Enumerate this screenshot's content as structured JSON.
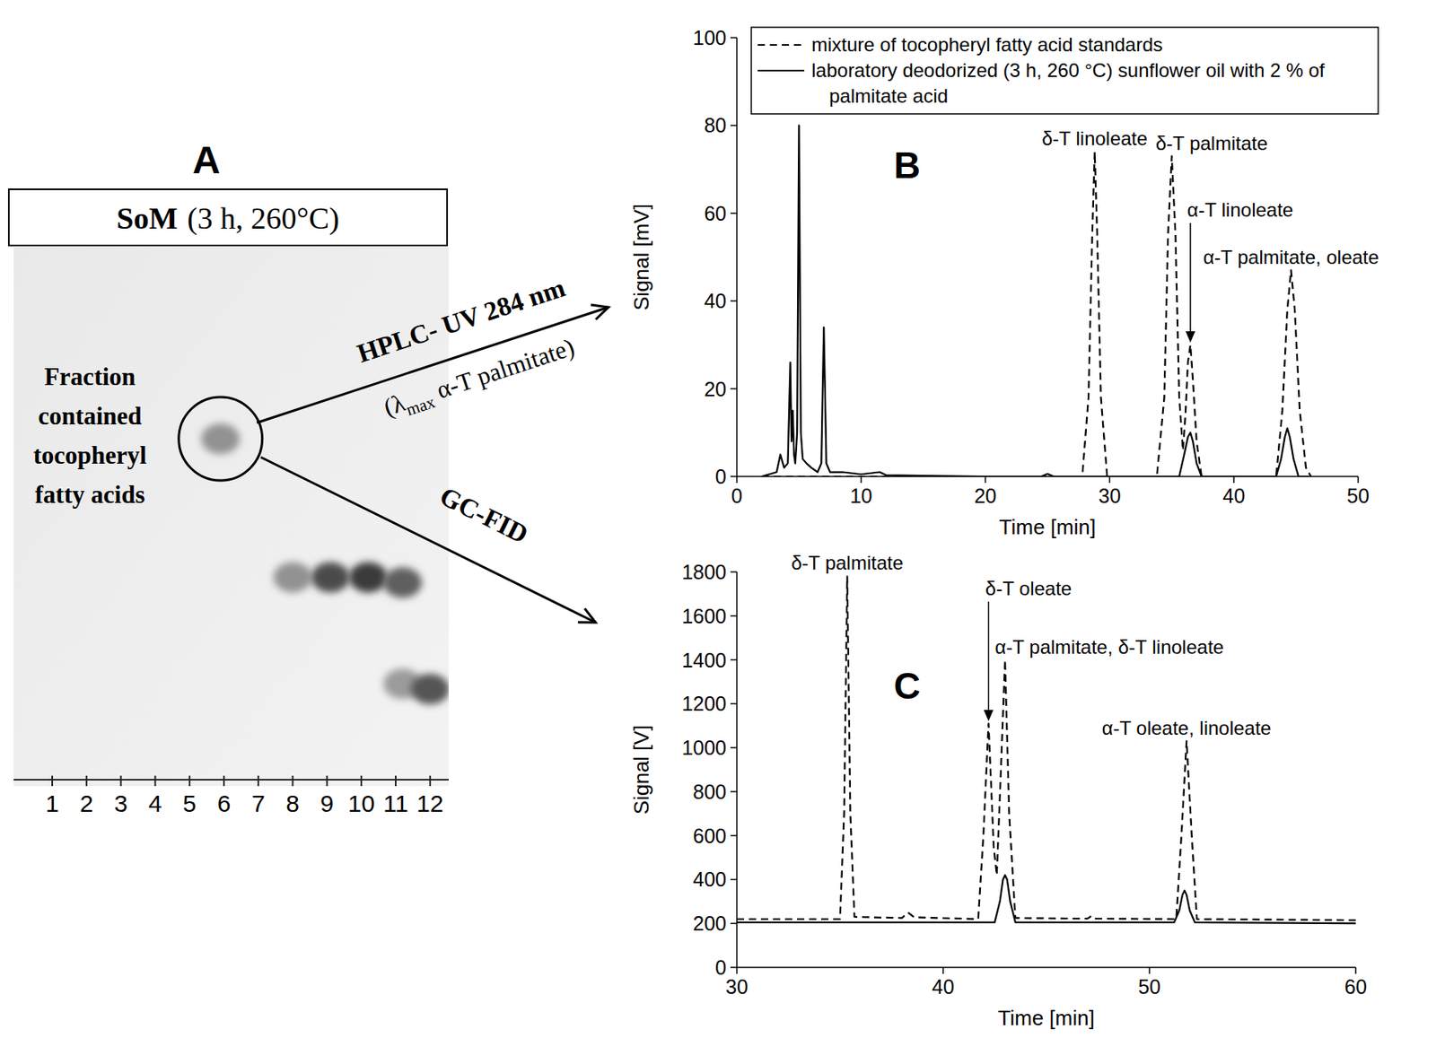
{
  "tlc_plate": {
    "panel_label": "A",
    "sample": "SoM",
    "conditions": "(3 h, 260°C)",
    "lanes": [
      1,
      2,
      3,
      4,
      5,
      6,
      7,
      8,
      9,
      10,
      11,
      12
    ],
    "fraction_label": "Fraction contained tocopheryl fatty acids",
    "spots": [
      {
        "lane": 5.9,
        "rf": 0.64,
        "intensity": 0.45
      },
      {
        "lane": 8,
        "rf": 0.38,
        "intensity": 0.45
      },
      {
        "lane": 9.1,
        "rf": 0.38,
        "intensity": 0.85
      },
      {
        "lane": 10.2,
        "rf": 0.38,
        "intensity": 0.95
      },
      {
        "lane": 11.2,
        "rf": 0.37,
        "intensity": 0.75
      },
      {
        "lane": 11.2,
        "rf": 0.18,
        "intensity": 0.4
      },
      {
        "lane": 12,
        "rf": 0.17,
        "intensity": 0.8
      }
    ],
    "routes": [
      {
        "method": "HPLC- UV 284 nm",
        "note": {
          "prefix": "(λ",
          "subscript": "max",
          "suffix": " α-T palmitate)"
        }
      },
      {
        "method": "GC-FID"
      }
    ]
  },
  "chart_data": [
    {
      "type": "line",
      "panel_label": "B",
      "xlabel": "Time [min]",
      "ylabel": "Signal [mV]",
      "xlim": [
        0,
        50
      ],
      "xticks": [
        0,
        10,
        20,
        30,
        40,
        50
      ],
      "ylim": [
        0,
        100
      ],
      "yticks": [
        0,
        20,
        40,
        60,
        80,
        100
      ],
      "legend": "top",
      "series": [
        {
          "name": "mixture of tocopheryl fatty acid standards",
          "color": "#000000",
          "line_style": "dashed",
          "x": [
            2,
            10,
            20,
            27.8,
            28.3,
            28.6,
            28.8,
            29.0,
            29.3,
            29.8,
            33.8,
            34.4,
            34.7,
            35.0,
            35.3,
            35.6,
            35.9,
            36.1,
            36.3,
            36.5,
            36.7,
            37.0,
            37.4,
            43.4,
            43.9,
            44.3,
            44.6,
            44.9,
            45.3,
            45.8,
            46.2
          ],
          "values": [
            0,
            0,
            0,
            0,
            18,
            55,
            74,
            55,
            18,
            0,
            0,
            18,
            55,
            73,
            55,
            18,
            6,
            14,
            26,
            30,
            22,
            8,
            0,
            0,
            15,
            38,
            47,
            38,
            15,
            2,
            0
          ]
        },
        {
          "name": "laboratory deodorized (3 h, 260 °C) sunflower oil with 2 % of palmitate acid",
          "color": "#000000",
          "line_style": "solid",
          "x": [
            2,
            3.2,
            3.5,
            3.8,
            4.1,
            4.3,
            4.4,
            4.5,
            4.6,
            4.7,
            4.85,
            5.0,
            5.15,
            5.3,
            5.6,
            6.0,
            6.5,
            6.8,
            7.0,
            7.2,
            7.5,
            8.5,
            10,
            11.5,
            12,
            20,
            24.5,
            25,
            25.5,
            30,
            35.6,
            36.0,
            36.3,
            36.5,
            36.7,
            37.0,
            37.4,
            43.4,
            43.8,
            44.1,
            44.3,
            44.5,
            44.8,
            45.2,
            46
          ],
          "values": [
            0,
            1,
            5,
            2,
            3,
            26,
            8,
            15,
            5,
            3,
            10,
            80,
            10,
            4,
            3,
            2,
            1,
            3,
            34,
            3,
            1,
            1,
            0.5,
            1,
            0.3,
            0,
            0,
            0.6,
            0,
            0,
            0,
            5,
            9,
            10,
            8,
            3,
            0,
            0,
            4,
            9,
            11,
            9,
            4,
            0,
            0
          ]
        }
      ],
      "annotations": [
        {
          "text": "δ-T linoleate",
          "x": 28.8,
          "y": 74
        },
        {
          "text": "δ-T palmitate",
          "x": 35.0,
          "y": 73
        },
        {
          "text": "α-T linoleate",
          "x": 36.5,
          "y": 30,
          "arrow": true
        },
        {
          "text": "α-T palmitate, oleate",
          "x": 44.6,
          "y": 47
        }
      ]
    },
    {
      "type": "line",
      "panel_label": "C",
      "xlabel": "Time [min]",
      "ylabel": "Signal [V]",
      "xlim": [
        30,
        60
      ],
      "xticks": [
        30,
        40,
        50,
        60
      ],
      "ylim": [
        0,
        1800
      ],
      "yticks": [
        0,
        200,
        400,
        600,
        800,
        1000,
        1200,
        1400,
        1600,
        1800
      ],
      "series": [
        {
          "color": "#000000",
          "line_style": "dashed",
          "x": [
            30,
            35.0,
            35.2,
            35.35,
            35.5,
            35.7,
            38.0,
            38.3,
            38.6,
            41.7,
            41.95,
            42.2,
            42.45,
            42.6,
            42.8,
            43.0,
            43.2,
            43.5,
            47.0,
            47.2,
            47.4,
            51.3,
            51.55,
            51.8,
            52.05,
            52.3,
            60
          ],
          "values": [
            220,
            220,
            700,
            1780,
            700,
            230,
            225,
            250,
            228,
            220,
            600,
            1110,
            550,
            420,
            900,
            1400,
            700,
            225,
            222,
            235,
            222,
            220,
            600,
            1030,
            600,
            220,
            215
          ]
        },
        {
          "color": "#000000",
          "line_style": "solid",
          "x": [
            30,
            42.5,
            42.75,
            42.9,
            43.0,
            43.1,
            43.25,
            43.5,
            51.2,
            51.45,
            51.6,
            51.7,
            51.8,
            51.95,
            52.2,
            60
          ],
          "values": [
            205,
            205,
            300,
            400,
            420,
            400,
            300,
            205,
            205,
            260,
            330,
            350,
            330,
            260,
            205,
            200
          ]
        }
      ],
      "annotations": [
        {
          "text": "δ-T palmitate",
          "x": 35.35,
          "y": 1780
        },
        {
          "text": "δ-T oleate",
          "x": 42.2,
          "y": 1110,
          "arrow": true
        },
        {
          "text": "α-T palmitate, δ-T linoleate",
          "x": 43.0,
          "y": 1400
        },
        {
          "text": "α-T oleate, linoleate",
          "x": 51.8,
          "y": 1030
        }
      ]
    }
  ]
}
